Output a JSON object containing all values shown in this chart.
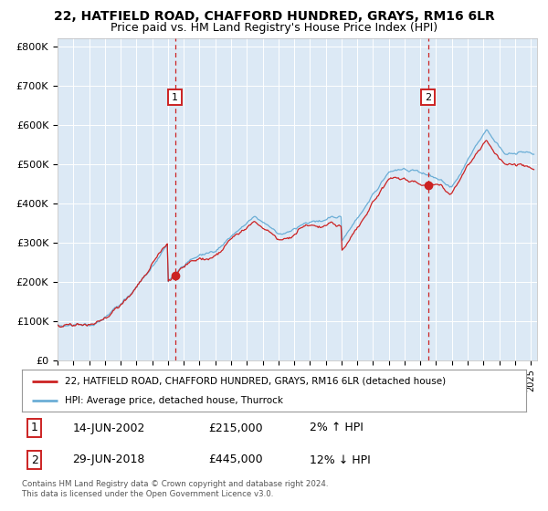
{
  "title": "22, HATFIELD ROAD, CHAFFORD HUNDRED, GRAYS, RM16 6LR",
  "subtitle": "Price paid vs. HM Land Registry's House Price Index (HPI)",
  "plot_bg_color": "#dce9f5",
  "ylim": [
    0,
    820000
  ],
  "yticks": [
    0,
    100000,
    200000,
    300000,
    400000,
    500000,
    600000,
    700000,
    800000
  ],
  "ytick_labels": [
    "£0",
    "£100K",
    "£200K",
    "£300K",
    "£400K",
    "£500K",
    "£600K",
    "£700K",
    "£800K"
  ],
  "hpi_color": "#6baed6",
  "price_color": "#cc2222",
  "sale1_date_label": "14-JUN-2002",
  "sale1_price": 215000,
  "sale1_hpi_pct": "2%",
  "sale1_hpi_dir": "↑",
  "sale2_date_label": "29-JUN-2018",
  "sale2_price": 445000,
  "sale2_hpi_pct": "12%",
  "sale2_hpi_dir": "↓",
  "sale1_year": 2002.45,
  "sale2_year": 2018.5,
  "legend_label1": "22, HATFIELD ROAD, CHAFFORD HUNDRED, GRAYS, RM16 6LR (detached house)",
  "legend_label2": "HPI: Average price, detached house, Thurrock",
  "footer": "Contains HM Land Registry data © Crown copyright and database right 2024.\nThis data is licensed under the Open Government Licence v3.0.",
  "title_fontsize": 10,
  "subtitle_fontsize": 9
}
